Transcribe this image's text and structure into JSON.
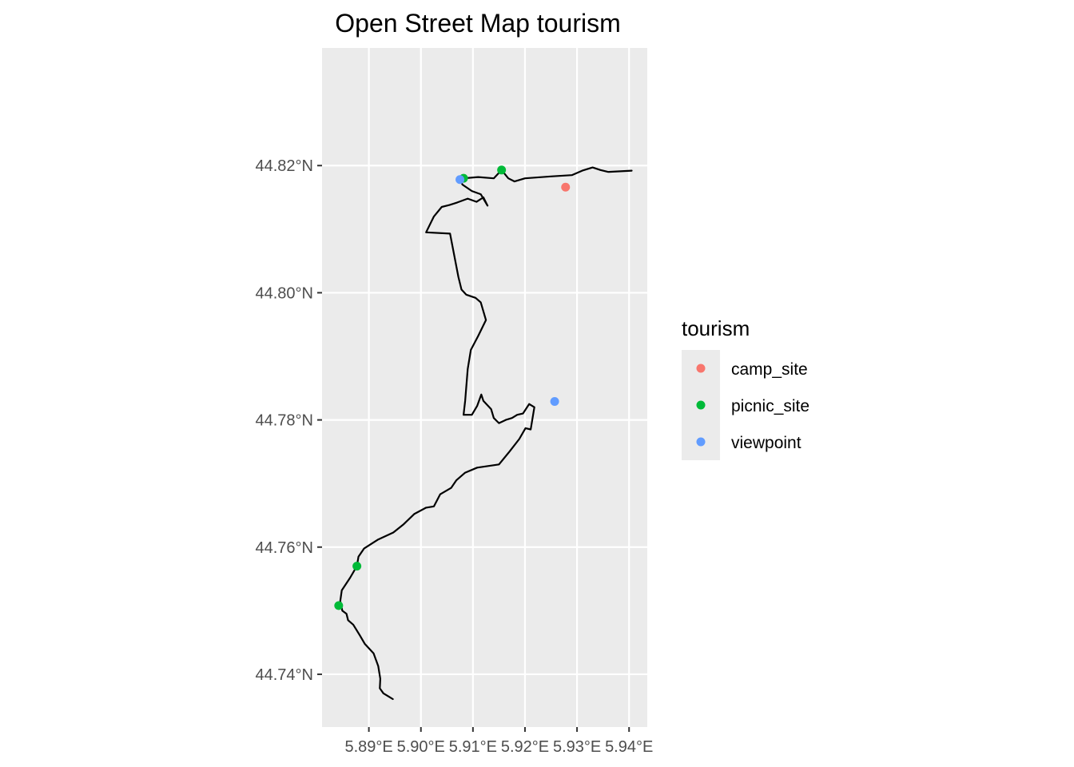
{
  "chart_data": {
    "type": "scatter",
    "title": "Open Street Map tourism",
    "xlabel": "",
    "ylabel": "",
    "xlim": [
      5.881,
      5.9435
    ],
    "ylim": [
      44.7317,
      44.8385
    ],
    "x_ticks": [
      5.89,
      5.9,
      5.91,
      5.92,
      5.93,
      5.94
    ],
    "x_tick_labels": [
      "5.89°E",
      "5.90°E",
      "5.91°E",
      "5.92°E",
      "5.93°E",
      "5.94°E"
    ],
    "y_ticks": [
      44.74,
      44.76,
      44.78,
      44.8,
      44.82
    ],
    "y_tick_labels": [
      "44.74°N",
      "44.76°N",
      "44.78°N",
      "44.80°N",
      "44.82°N"
    ],
    "grid": true,
    "legend": {
      "title": "tourism",
      "position": "right",
      "entries": [
        {
          "label": "camp_site",
          "color": "#F8766D"
        },
        {
          "label": "picnic_site",
          "color": "#00BA38"
        },
        {
          "label": "viewpoint",
          "color": "#619CFF"
        }
      ]
    },
    "points": [
      {
        "category": "camp_site",
        "x": 5.9278,
        "y": 44.8166
      },
      {
        "category": "picnic_site",
        "x": 5.9082,
        "y": 44.818
      },
      {
        "category": "picnic_site",
        "x": 5.9155,
        "y": 44.8193
      },
      {
        "category": "picnic_site",
        "x": 5.8877,
        "y": 44.757
      },
      {
        "category": "picnic_site",
        "x": 5.8842,
        "y": 44.7508
      },
      {
        "category": "viewpoint",
        "x": 5.9075,
        "y": 44.8178
      },
      {
        "category": "viewpoint",
        "x": 5.9257,
        "y": 44.7829
      }
    ],
    "route": [
      [
        5.8946,
        44.7361
      ],
      [
        5.8938,
        44.7365
      ],
      [
        5.8928,
        44.737
      ],
      [
        5.8921,
        44.7378
      ],
      [
        5.8922,
        44.7393
      ],
      [
        5.8918,
        44.7413
      ],
      [
        5.8909,
        44.7433
      ],
      [
        5.8892,
        44.7448
      ],
      [
        5.8882,
        44.7462
      ],
      [
        5.887,
        44.7478
      ],
      [
        5.886,
        44.7485
      ],
      [
        5.8857,
        44.7495
      ],
      [
        5.8849,
        44.75
      ],
      [
        5.8845,
        44.7515
      ],
      [
        5.8848,
        44.7532
      ],
      [
        5.8864,
        44.7552
      ],
      [
        5.8877,
        44.757
      ],
      [
        5.888,
        44.7585
      ],
      [
        5.8891,
        44.7598
      ],
      [
        5.8918,
        44.7612
      ],
      [
        5.8947,
        44.7623
      ],
      [
        5.8967,
        44.7636
      ],
      [
        5.8987,
        44.7652
      ],
      [
        5.901,
        44.7662
      ],
      [
        5.9025,
        44.7664
      ],
      [
        5.9037,
        44.7683
      ],
      [
        5.9058,
        44.7693
      ],
      [
        5.9068,
        44.7705
      ],
      [
        5.9085,
        44.7717
      ],
      [
        5.9108,
        44.7725
      ],
      [
        5.915,
        44.773
      ],
      [
        5.917,
        44.775
      ],
      [
        5.9189,
        44.777
      ],
      [
        5.9201,
        44.7787
      ],
      [
        5.9211,
        44.7785
      ],
      [
        5.9218,
        44.782
      ],
      [
        5.9208,
        44.7825
      ],
      [
        5.9196,
        44.781
      ],
      [
        5.9185,
        44.7808
      ],
      [
        5.9175,
        44.7803
      ],
      [
        5.9163,
        44.78
      ],
      [
        5.915,
        44.7795
      ],
      [
        5.914,
        44.7803
      ],
      [
        5.9135,
        44.7817
      ],
      [
        5.912,
        44.783
      ],
      [
        5.9116,
        44.784
      ],
      [
        5.9108,
        44.7822
      ],
      [
        5.9098,
        44.7808
      ],
      [
        5.9082,
        44.7808
      ],
      [
        5.9085,
        44.783
      ],
      [
        5.909,
        44.788
      ],
      [
        5.9096,
        44.791
      ],
      [
        5.911,
        44.7932
      ],
      [
        5.9125,
        44.7957
      ],
      [
        5.9115,
        44.7985
      ],
      [
        5.9105,
        44.7992
      ],
      [
        5.9087,
        44.7997
      ],
      [
        5.9078,
        44.8005
      ],
      [
        5.9072,
        44.8025
      ],
      [
        5.9056,
        44.8093
      ],
      [
        5.901,
        44.8095
      ],
      [
        5.9025,
        44.812
      ],
      [
        5.904,
        44.8135
      ],
      [
        5.9055,
        44.8138
      ],
      [
        5.907,
        44.8142
      ],
      [
        5.909,
        44.8148
      ],
      [
        5.9107,
        44.8143
      ],
      [
        5.912,
        44.815
      ],
      [
        5.9128,
        44.8137
      ],
      [
        5.9115,
        44.8155
      ],
      [
        5.9098,
        44.816
      ],
      [
        5.908,
        44.817
      ],
      [
        5.9075,
        44.8178
      ],
      [
        5.9082,
        44.818
      ],
      [
        5.911,
        44.8182
      ],
      [
        5.914,
        44.818
      ],
      [
        5.9155,
        44.8193
      ],
      [
        5.9168,
        44.818
      ],
      [
        5.918,
        44.8175
      ],
      [
        5.92,
        44.818
      ],
      [
        5.925,
        44.8183
      ],
      [
        5.929,
        44.8185
      ],
      [
        5.931,
        44.8192
      ],
      [
        5.933,
        44.8197
      ],
      [
        5.9345,
        44.8193
      ],
      [
        5.936,
        44.819
      ],
      [
        5.9405,
        44.8192
      ]
    ]
  }
}
